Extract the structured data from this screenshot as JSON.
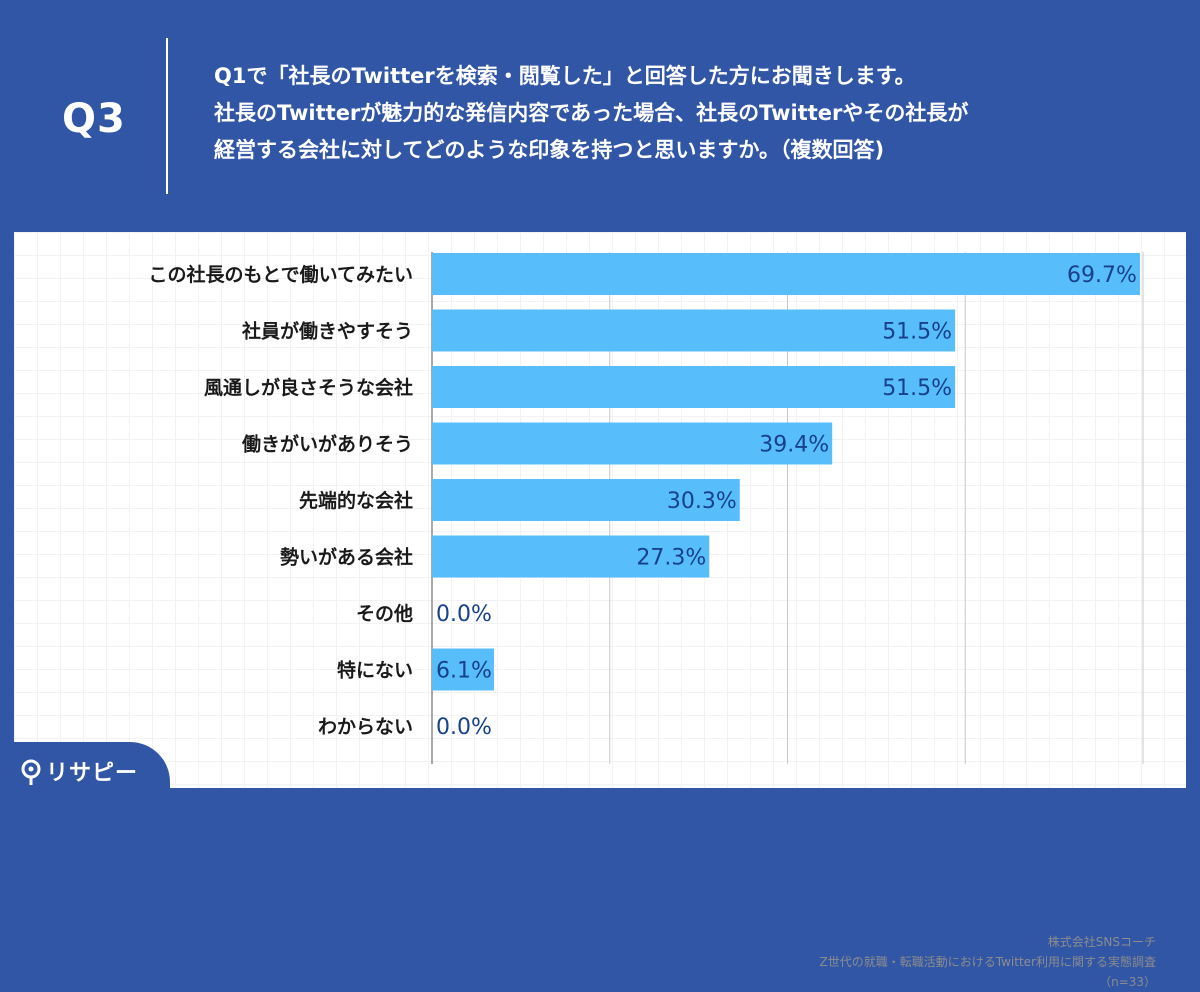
{
  "header": {
    "q_label": "Q3",
    "question_lines": [
      "Q1で「社長のTwitterを検索・閲覧した」と回答した方にお聞きします。",
      "社長のTwitterが魅力的な発信内容であった場合、社長のTwitterやその社長が",
      "経営する会社に対してどのような印象を持つと思いますか。（複数回答)"
    ]
  },
  "colors": {
    "background": "#3256a6",
    "bar": "#58bdfb",
    "value_text": "#17418a"
  },
  "chart_data": {
    "type": "bar",
    "orientation": "horizontal",
    "categories": [
      "この社長のもとで働いてみたい",
      "社員が働きやすそう",
      "風通しが良さそうな会社",
      "働きがいがありそう",
      "先端的な会社",
      "勢いがある会社",
      "その他",
      "特にない",
      "わからない"
    ],
    "values": [
      69.7,
      51.5,
      51.5,
      39.4,
      30.3,
      27.3,
      0.0,
      6.1,
      0.0
    ],
    "value_labels": [
      "69.7%",
      "51.5%",
      "51.5%",
      "39.4%",
      "30.3%",
      "27.3%",
      "0.0%",
      "6.1%",
      "0.0%"
    ],
    "xlim": [
      0,
      70
    ],
    "gridlines_at": [
      0,
      17.5,
      35,
      52.5,
      70
    ],
    "title": "",
    "xlabel": "",
    "ylabel": ""
  },
  "source": {
    "company": "株式会社SNSコーチ",
    "survey": "Z世代の就職・転職活動におけるTwitter利用に関する実態調査",
    "sample": "（n=33）"
  },
  "logo": {
    "text": "リサピー"
  }
}
